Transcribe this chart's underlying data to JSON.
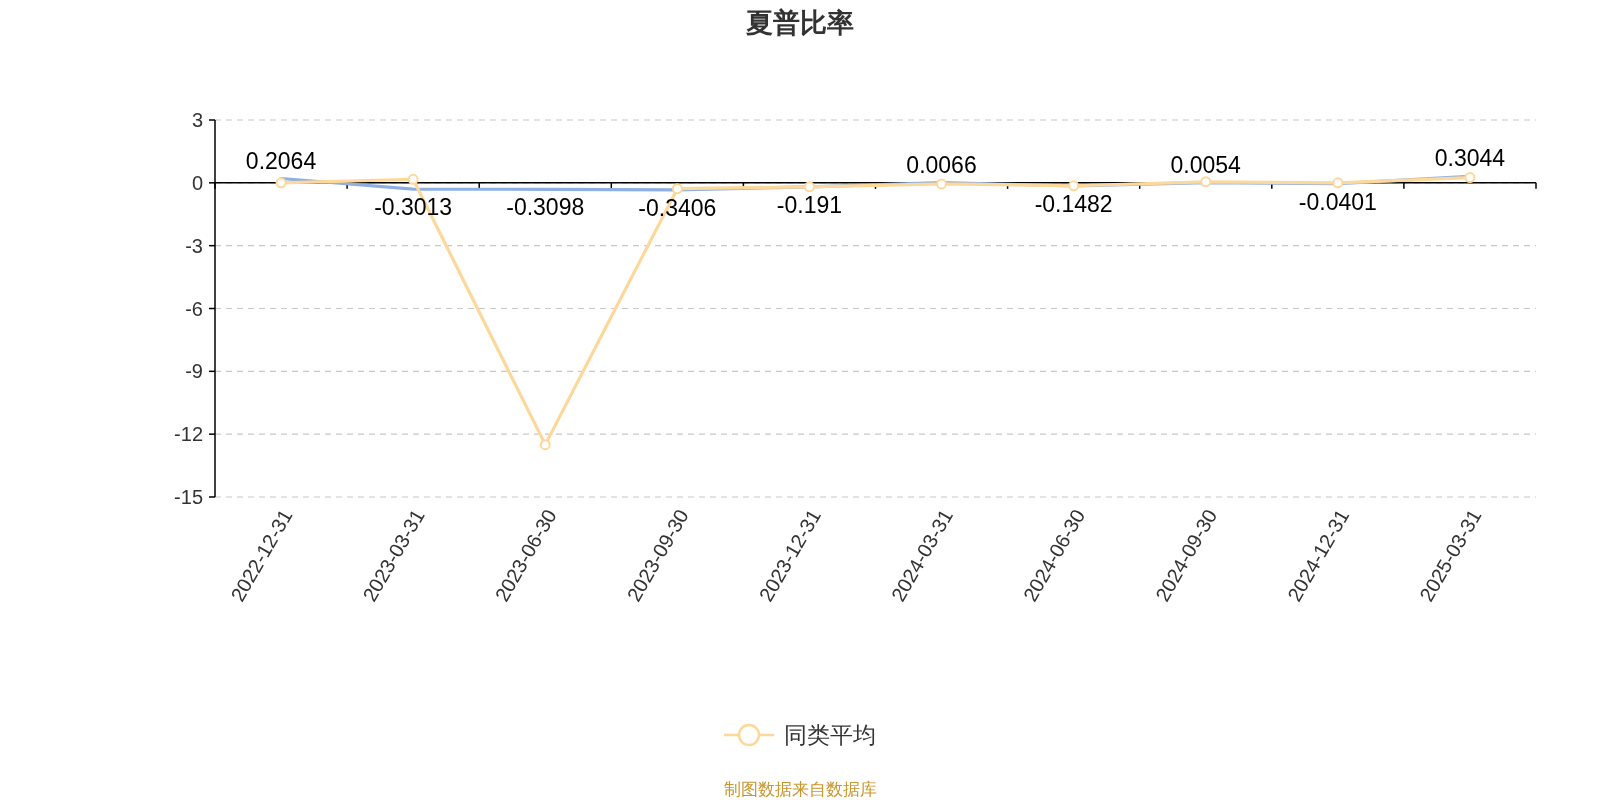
{
  "chart_data": {
    "type": "line",
    "title": "夏普比率",
    "categories": [
      "2022-12-31",
      "2023-03-31",
      "2023-06-30",
      "2023-09-30",
      "2023-12-31",
      "2024-03-31",
      "2024-06-30",
      "2024-09-30",
      "2024-12-31",
      "2025-03-31"
    ],
    "series": [
      {
        "color": "#8eb0e0",
        "marker": "none",
        "values": [
          0.2064,
          -0.3013,
          -0.3098,
          -0.3406,
          -0.191,
          0.0066,
          -0.1482,
          0.0054,
          -0.0401,
          0.3044
        ],
        "value_labels": [
          "0.2064",
          "-0.3013",
          "-0.3098",
          "-0.3406",
          "-0.191",
          "0.0066",
          "-0.1482",
          "0.0054",
          "-0.0401",
          "0.3044"
        ]
      },
      {
        "name": "同类平均",
        "color": "#fdd89a",
        "values": [
          0,
          0.17,
          -12.5,
          -0.28,
          -0.19,
          -0.05,
          -0.14,
          0.05,
          0,
          0.25
        ]
      }
    ],
    "ylim": [
      -15,
      3
    ],
    "yticks": [
      -15,
      -12,
      -9,
      -6,
      -3,
      0,
      3
    ],
    "grid": "y",
    "legend": "bottom",
    "marker": "circle",
    "annotations": [
      "制图数据来自数据库"
    ]
  }
}
